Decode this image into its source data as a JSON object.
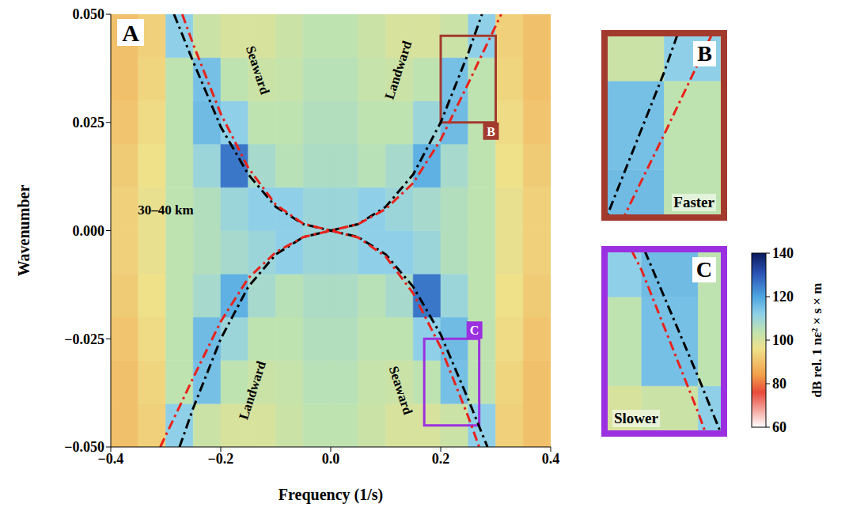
{
  "chart_data": {
    "type": "heatmap",
    "panel": "A",
    "xlabel": "Frequency (1/s)",
    "ylabel": "Wavenumber",
    "xlim": [
      -0.4,
      0.4
    ],
    "xticks": [
      {
        "value": -0.4,
        "label": "−0.4"
      },
      {
        "value": -0.2,
        "label": "−0.2"
      },
      {
        "value": 0,
        "label": "0.0"
      },
      0.2,
      0.4
    ],
    "ylim": [
      -0.05,
      0.05
    ],
    "yticks": [
      {
        "value": -0.05,
        "label": "−0.050"
      },
      {
        "value": -0.025,
        "label": "−0.025"
      },
      {
        "value": 0,
        "label": "0.000"
      },
      0.025,
      {
        "value": 0.05,
        "label": "0.050"
      }
    ],
    "annotations": [
      "Seaward",
      "Landward",
      "Landward",
      "Seaward",
      "30–40 km"
    ],
    "heatmap": {
      "x_edges": [
        -0.4,
        -0.35,
        -0.3,
        -0.25,
        -0.2,
        -0.15,
        -0.1,
        -0.05,
        0,
        0.05,
        0.1,
        0.15,
        0.2,
        0.25,
        0.3,
        0.35,
        0.4
      ],
      "y_edges": [
        -0.05,
        -0.04,
        -0.03,
        -0.02,
        -0.01,
        0,
        0.01,
        0.02,
        0.03,
        0.04,
        0.05
      ],
      "cells": [
        [
          90,
          93,
          112,
          102,
          100,
          100,
          102,
          104,
          104,
          102,
          100,
          100,
          102,
          112,
          93,
          90
        ],
        [
          90,
          94,
          104,
          115,
          104,
          102,
          103,
          105,
          105,
          103,
          102,
          104,
          115,
          104,
          94,
          90
        ],
        [
          91,
          95,
          104,
          116,
          110,
          104,
          104,
          106,
          106,
          104,
          104,
          112,
          116,
          104,
          95,
          91
        ],
        [
          92,
          96,
          104,
          108,
          118,
          108,
          105,
          107,
          107,
          105,
          108,
          126,
          110,
          104,
          96,
          92
        ],
        [
          93,
          97,
          104,
          106,
          108,
          110,
          112,
          110,
          110,
          112,
          112,
          110,
          106,
          104,
          97,
          93
        ],
        [
          93,
          97,
          104,
          106,
          110,
          112,
          112,
          110,
          110,
          112,
          110,
          108,
          106,
          104,
          97,
          93
        ],
        [
          92,
          96,
          104,
          110,
          126,
          108,
          105,
          107,
          107,
          105,
          108,
          118,
          108,
          104,
          96,
          92
        ],
        [
          91,
          95,
          104,
          116,
          112,
          104,
          104,
          106,
          106,
          104,
          104,
          110,
          116,
          104,
          95,
          91
        ],
        [
          90,
          94,
          104,
          115,
          104,
          102,
          103,
          105,
          105,
          103,
          102,
          104,
          115,
          104,
          94,
          90
        ],
        [
          90,
          93,
          112,
          102,
          100,
          100,
          102,
          104,
          104,
          102,
          100,
          100,
          102,
          112,
          93,
          90
        ]
      ]
    },
    "colorbar": {
      "label": "dB rel. 1 nε² × s × m",
      "range": [
        60,
        140
      ],
      "ticks": [
        60,
        80,
        100,
        120,
        140
      ]
    },
    "series": [
      {
        "color": "#000000",
        "line_style": "dashdot",
        "x": [
          -0.275,
          -0.25,
          -0.2,
          -0.15,
          -0.1,
          -0.05,
          0,
          0.05,
          0.1,
          0.15,
          0.2,
          0.25,
          0.275
        ],
        "values": [
          -0.05,
          -0.041,
          -0.025,
          -0.013,
          -0.0055,
          -0.0015,
          0,
          0.0015,
          0.0055,
          0.013,
          0.025,
          0.041,
          0.05
        ]
      },
      {
        "color": "#000000",
        "line_style": "dashdot",
        "x": [
          -0.285,
          -0.25,
          -0.2,
          -0.15,
          -0.1,
          -0.05,
          0,
          0.05,
          0.1,
          0.15,
          0.2,
          0.25,
          0.285
        ],
        "values": [
          0.05,
          0.039,
          0.024,
          0.013,
          0.0055,
          0.0015,
          0,
          -0.0015,
          -0.0055,
          -0.013,
          -0.024,
          -0.039,
          -0.05
        ]
      },
      {
        "color": "#e8221b",
        "line_style": "dashdot",
        "x": [
          -0.31,
          -0.25,
          -0.2,
          -0.15,
          -0.1,
          -0.05,
          0,
          0.05,
          0.1,
          0.15,
          0.2,
          0.25,
          0.31
        ],
        "values": [
          -0.05,
          -0.034,
          -0.021,
          -0.011,
          -0.005,
          -0.0015,
          0,
          0.0015,
          0.005,
          0.011,
          0.021,
          0.034,
          0.05
        ]
      },
      {
        "color": "#e8221b",
        "line_style": "dashdot",
        "x": [
          -0.27,
          -0.25,
          -0.2,
          -0.15,
          -0.1,
          -0.05,
          0,
          0.05,
          0.1,
          0.15,
          0.2,
          0.25,
          0.27
        ],
        "values": [
          0.05,
          0.043,
          0.027,
          0.0145,
          0.006,
          0.0016,
          0,
          -0.0016,
          -0.006,
          -0.0145,
          -0.027,
          -0.043,
          -0.05
        ]
      }
    ],
    "insets": [
      {
        "panel": "B",
        "text": "Faster",
        "color": "#a33a2e",
        "xlim": [
          0.2,
          0.3
        ],
        "ylim": [
          0.025,
          0.045
        ],
        "tick_labels": false
      },
      {
        "panel": "C",
        "text": "Slower",
        "color": "#9b30e0",
        "xlim": [
          0.17,
          0.27
        ],
        "ylim": [
          -0.045,
          -0.025
        ],
        "tick_labels": false
      }
    ]
  }
}
